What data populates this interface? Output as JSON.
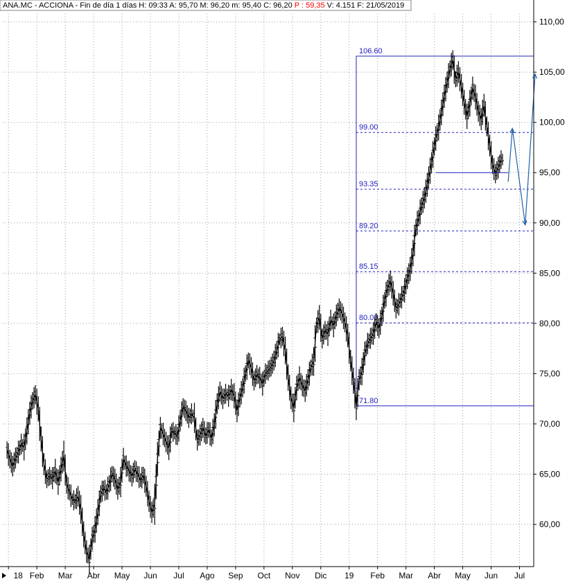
{
  "header": {
    "ticker": "ANA.MC - ACCIONA",
    "interval": "Fin de día 1 días",
    "fields": [
      {
        "label": "H:",
        "value": "09:33"
      },
      {
        "label": "A:",
        "value": "95,70"
      },
      {
        "label": "M:",
        "value": "96,20"
      },
      {
        "label": "m:",
        "value": "95,40"
      },
      {
        "label": "C:",
        "value": "96,20"
      }
    ],
    "p_field": {
      "label": "P :",
      "value": "59,35"
    },
    "tail_fields": [
      {
        "label": "V:",
        "value": "4.151"
      },
      {
        "label": "F:",
        "value": "21/05/2019"
      }
    ]
  },
  "colors": {
    "price": "#000000",
    "fib_lines": "#2020c0",
    "projection": "#1f5fa8",
    "grid": "#9a9a9a",
    "p_value": "#ff0000"
  },
  "chart_data": {
    "type": "line",
    "x_unit": "month index (0 = Jan 2018)",
    "y_axis": {
      "side": "right",
      "ylim": [
        55.8,
        110.8
      ],
      "ticks": [
        "60,00",
        "65,00",
        "70,00",
        "75,00",
        "80,00",
        "85,00",
        "90,00",
        "95,00",
        "100,00",
        "105,00",
        "110,00"
      ],
      "tick_values": [
        60,
        65,
        70,
        75,
        80,
        85,
        90,
        95,
        100,
        105,
        110
      ]
    },
    "x_axis": {
      "ticks": [
        {
          "label": "18",
          "x": 0
        },
        {
          "label": "Feb",
          "x": 1
        },
        {
          "label": "Mar",
          "x": 2
        },
        {
          "label": "Abr",
          "x": 3
        },
        {
          "label": "May",
          "x": 4
        },
        {
          "label": "Jun",
          "x": 5
        },
        {
          "label": "Jul",
          "x": 6
        },
        {
          "label": "Ago",
          "x": 7
        },
        {
          "label": "Sep",
          "x": 8
        },
        {
          "label": "Oct",
          "x": 9
        },
        {
          "label": "Nov",
          "x": 10
        },
        {
          "label": "Dic",
          "x": 11
        },
        {
          "label": "19",
          "x": 12
        },
        {
          "label": "Feb",
          "x": 13
        },
        {
          "label": "Mar",
          "x": 14
        },
        {
          "label": "Abr",
          "x": 15
        },
        {
          "label": "May",
          "x": 16
        },
        {
          "label": "Jun",
          "x": 17
        },
        {
          "label": "Jul",
          "x": 18
        }
      ],
      "xlim": [
        -0.2,
        18.5
      ]
    },
    "grid": true,
    "series": [
      {
        "values": [
          [
            -0.05,
            67.4
          ],
          [
            0.05,
            66.5
          ],
          [
            0.15,
            65.8
          ],
          [
            0.25,
            66.6
          ],
          [
            0.35,
            67.2
          ],
          [
            0.45,
            68.0
          ],
          [
            0.55,
            67.7
          ],
          [
            0.65,
            69.3
          ],
          [
            0.75,
            71.1
          ],
          [
            0.85,
            72.3
          ],
          [
            0.95,
            72.9
          ],
          [
            1.05,
            71.5
          ],
          [
            1.15,
            68.5
          ],
          [
            1.25,
            66.0
          ],
          [
            1.35,
            64.5
          ],
          [
            1.45,
            64.8
          ],
          [
            1.55,
            64.6
          ],
          [
            1.65,
            65.3
          ],
          [
            1.75,
            64.2
          ],
          [
            1.85,
            65.5
          ],
          [
            1.95,
            66.8
          ],
          [
            2.05,
            64.0
          ],
          [
            2.15,
            63.2
          ],
          [
            2.25,
            62.5
          ],
          [
            2.35,
            62.3
          ],
          [
            2.45,
            62.8
          ],
          [
            2.55,
            61.5
          ],
          [
            2.65,
            59.0
          ],
          [
            2.75,
            57.3
          ],
          [
            2.85,
            56.5
          ],
          [
            2.95,
            58.6
          ],
          [
            3.05,
            59.5
          ],
          [
            3.15,
            61.2
          ],
          [
            3.25,
            63.0
          ],
          [
            3.35,
            63.6
          ],
          [
            3.45,
            63.2
          ],
          [
            3.55,
            64.0
          ],
          [
            3.65,
            65.0
          ],
          [
            3.75,
            64.5
          ],
          [
            3.85,
            63.5
          ],
          [
            3.95,
            64.2
          ],
          [
            4.05,
            66.5
          ],
          [
            4.15,
            65.8
          ],
          [
            4.25,
            65.3
          ],
          [
            4.35,
            64.8
          ],
          [
            4.45,
            65.5
          ],
          [
            4.55,
            65.0
          ],
          [
            4.65,
            64.4
          ],
          [
            4.75,
            64.9
          ],
          [
            4.85,
            63.8
          ],
          [
            4.95,
            62.3
          ],
          [
            5.05,
            61.2
          ],
          [
            5.15,
            62.0
          ],
          [
            5.25,
            66.5
          ],
          [
            5.35,
            69.6
          ],
          [
            5.45,
            69.0
          ],
          [
            5.55,
            68.2
          ],
          [
            5.65,
            67.6
          ],
          [
            5.75,
            69.3
          ],
          [
            5.85,
            69.1
          ],
          [
            5.95,
            68.8
          ],
          [
            6.05,
            70.3
          ],
          [
            6.15,
            71.7
          ],
          [
            6.25,
            71.3
          ],
          [
            6.35,
            70.6
          ],
          [
            6.45,
            71.0
          ],
          [
            6.55,
            70.6
          ],
          [
            6.65,
            68.4
          ],
          [
            6.75,
            68.9
          ],
          [
            6.85,
            69.6
          ],
          [
            6.95,
            68.8
          ],
          [
            7.05,
            69.4
          ],
          [
            7.15,
            68.6
          ],
          [
            7.25,
            69.9
          ],
          [
            7.35,
            72.0
          ],
          [
            7.45,
            73.2
          ],
          [
            7.55,
            72.5
          ],
          [
            7.65,
            73.0
          ],
          [
            7.75,
            72.8
          ],
          [
            7.85,
            73.4
          ],
          [
            7.95,
            72.8
          ],
          [
            8.05,
            71.3
          ],
          [
            8.15,
            72.6
          ],
          [
            8.25,
            73.6
          ],
          [
            8.35,
            75.0
          ],
          [
            8.45,
            76.3
          ],
          [
            8.55,
            75.6
          ],
          [
            8.65,
            74.3
          ],
          [
            8.75,
            74.9
          ],
          [
            8.85,
            74.6
          ],
          [
            8.95,
            74.0
          ],
          [
            9.05,
            75.0
          ],
          [
            9.15,
            75.3
          ],
          [
            9.25,
            75.7
          ],
          [
            9.35,
            76.3
          ],
          [
            9.45,
            77.3
          ],
          [
            9.55,
            78.4
          ],
          [
            9.65,
            78.7
          ],
          [
            9.75,
            77.3
          ],
          [
            9.85,
            74.6
          ],
          [
            9.95,
            72.6
          ],
          [
            10.05,
            71.6
          ],
          [
            10.15,
            73.6
          ],
          [
            10.25,
            74.6
          ],
          [
            10.35,
            73.8
          ],
          [
            10.45,
            73.3
          ],
          [
            10.55,
            74.4
          ],
          [
            10.65,
            75.6
          ],
          [
            10.75,
            76.2
          ],
          [
            10.85,
            79.8
          ],
          [
            10.95,
            80.6
          ],
          [
            11.05,
            78.5
          ],
          [
            11.15,
            79.3
          ],
          [
            11.25,
            79.0
          ],
          [
            11.35,
            80.3
          ],
          [
            11.45,
            79.8
          ],
          [
            11.55,
            80.8
          ],
          [
            11.65,
            81.5
          ],
          [
            11.75,
            81.0
          ],
          [
            11.85,
            80.1
          ],
          [
            11.95,
            78.8
          ],
          [
            12.05,
            76.3
          ],
          [
            12.15,
            74.3
          ],
          [
            12.25,
            71.8
          ],
          [
            12.35,
            74.4
          ],
          [
            12.45,
            75.2
          ],
          [
            12.55,
            77.0
          ],
          [
            12.65,
            78.0
          ],
          [
            12.75,
            78.5
          ],
          [
            12.85,
            79.0
          ],
          [
            12.95,
            80.1
          ],
          [
            13.05,
            79.5
          ],
          [
            13.15,
            80.7
          ],
          [
            13.25,
            82.3
          ],
          [
            13.35,
            83.5
          ],
          [
            13.45,
            84.2
          ],
          [
            13.55,
            83.0
          ],
          [
            13.65,
            81.5
          ],
          [
            13.75,
            81.9
          ],
          [
            13.85,
            82.6
          ],
          [
            13.95,
            83.3
          ],
          [
            14.05,
            84.5
          ],
          [
            14.15,
            85.4
          ],
          [
            14.25,
            87.0
          ],
          [
            14.35,
            89.5
          ],
          [
            14.45,
            90.5
          ],
          [
            14.55,
            91.7
          ],
          [
            14.65,
            92.5
          ],
          [
            14.75,
            93.8
          ],
          [
            14.85,
            95.2
          ],
          [
            14.95,
            96.8
          ],
          [
            15.05,
            98.4
          ],
          [
            15.15,
            99.5
          ],
          [
            15.25,
            101.0
          ],
          [
            15.35,
            102.6
          ],
          [
            15.45,
            104.0
          ],
          [
            15.55,
            105.3
          ],
          [
            15.65,
            106.2
          ],
          [
            15.75,
            104.3
          ],
          [
            15.85,
            105.0
          ],
          [
            15.95,
            103.6
          ],
          [
            16.05,
            102.0
          ],
          [
            16.15,
            100.6
          ],
          [
            16.25,
            101.9
          ],
          [
            16.35,
            103.4
          ],
          [
            16.45,
            102.5
          ],
          [
            16.55,
            101.1
          ],
          [
            16.65,
            100.3
          ],
          [
            16.75,
            101.7
          ],
          [
            16.85,
            99.6
          ],
          [
            16.95,
            97.7
          ],
          [
            17.05,
            95.8
          ],
          [
            17.15,
            94.9
          ],
          [
            17.25,
            95.5
          ],
          [
            17.35,
            96.3
          ]
        ]
      }
    ],
    "fibonacci": {
      "start_x": 12.25,
      "end_x": 18.5,
      "levels": [
        {
          "value": 106.6,
          "label": "106.60",
          "style": "solid"
        },
        {
          "value": 99.0,
          "label": "99.00",
          "style": "dashed"
        },
        {
          "value": 93.35,
          "label": "93.35",
          "style": "dashed"
        },
        {
          "value": 89.2,
          "label": "89.20",
          "style": "dashed"
        },
        {
          "value": 85.15,
          "label": "85.15",
          "style": "dashed"
        },
        {
          "value": 80.05,
          "label": "80.05",
          "style": "dashed"
        },
        {
          "value": 71.8,
          "label": "71.80",
          "style": "solid"
        }
      ]
    },
    "support_line": {
      "x": [
        15.05,
        17.6
      ],
      "y": [
        95.0,
        95.0
      ]
    },
    "projection": [
      [
        17.6,
        94.1
      ],
      [
        17.75,
        99.4
      ],
      [
        18.2,
        89.8
      ],
      [
        18.55,
        104.8
      ]
    ]
  }
}
